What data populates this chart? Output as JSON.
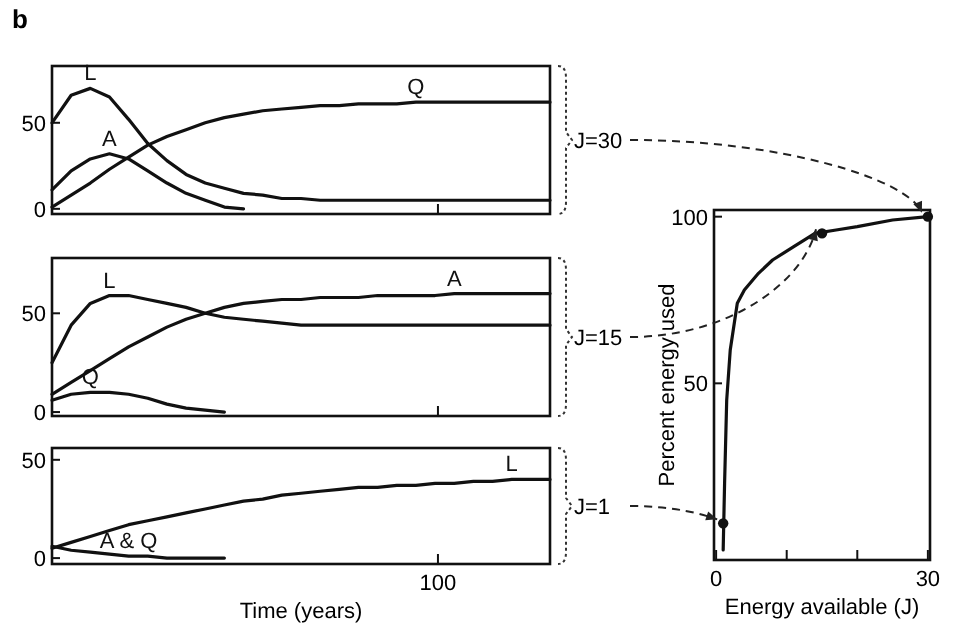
{
  "chart_data": [
    {
      "type": "line",
      "title": "b",
      "categories": [
        null,
        null,
        null,
        null,
        null,
        null,
        null,
        null,
        null,
        null,
        null,
        null,
        null,
        null,
        null,
        null,
        null,
        null,
        null,
        null,
        null,
        null,
        null,
        null,
        null,
        null,
        null
      ],
      "ylim": [
        -3,
        83
      ],
      "yticks": [
        0,
        50
      ],
      "marker": "none",
      "line_style": "solid",
      "series": [
        {
          "name": "L",
          "color": "#111111",
          "values": [
            50,
            66,
            70,
            65,
            52,
            38,
            28,
            20,
            15,
            12,
            9,
            8,
            6,
            6,
            5,
            5,
            5,
            5,
            5,
            5,
            5,
            5,
            5,
            5,
            5,
            5,
            5
          ]
        },
        {
          "name": "A",
          "color": "#111111",
          "values": [
            11,
            22,
            29,
            32,
            29,
            22,
            15,
            9,
            5,
            1,
            0,
            null,
            null,
            null,
            null,
            null,
            null,
            null,
            null,
            null,
            null,
            null,
            null,
            null,
            null,
            null,
            null
          ]
        },
        {
          "name": "Q",
          "color": "#111111",
          "values": [
            1,
            8,
            15,
            23,
            30,
            37,
            42,
            46,
            50,
            53,
            55,
            57,
            58,
            59,
            60,
            60,
            61,
            61,
            61,
            62,
            62,
            62,
            62,
            62,
            62,
            62,
            62
          ]
        }
      ]
    },
    {
      "type": "line",
      "categories": [
        null,
        null,
        null,
        null,
        null,
        null,
        null,
        null,
        null,
        null,
        null,
        null,
        null,
        null,
        null,
        null,
        null,
        null,
        null,
        null,
        null,
        null,
        null,
        null,
        null,
        null,
        null
      ],
      "ylim": [
        -2,
        78
      ],
      "yticks": [
        0,
        50
      ],
      "marker": "none",
      "line_style": "solid",
      "series": [
        {
          "name": "L",
          "color": "#111111",
          "values": [
            25,
            44,
            55,
            59,
            59,
            57,
            55,
            53,
            50,
            48,
            47,
            46,
            45,
            44,
            44,
            44,
            44,
            44,
            44,
            44,
            44,
            44,
            44,
            44,
            44,
            44,
            44
          ]
        },
        {
          "name": "A",
          "color": "#111111",
          "values": [
            9,
            15,
            21,
            27,
            33,
            38,
            43,
            47,
            50,
            53,
            55,
            56,
            57,
            57,
            58,
            58,
            58,
            59,
            59,
            59,
            59,
            60,
            60,
            60,
            60,
            60,
            60
          ]
        },
        {
          "name": "Q",
          "color": "#111111",
          "values": [
            6,
            9,
            10,
            10,
            9,
            7,
            4,
            2,
            1,
            0,
            null,
            null,
            null,
            null,
            null,
            null,
            null,
            null,
            null,
            null,
            null,
            null,
            null,
            null,
            null,
            null,
            null
          ]
        }
      ]
    },
    {
      "type": "line",
      "xlabel": "Time (years)",
      "annotations": [
        "100"
      ],
      "categories": [
        null,
        null,
        null,
        null,
        null,
        null,
        null,
        null,
        null,
        null,
        null,
        null,
        null,
        null,
        null,
        null,
        null,
        null,
        null,
        null,
        null,
        null,
        null,
        null,
        null,
        null,
        null
      ],
      "ylim": [
        -3,
        56
      ],
      "yticks": [
        0,
        50
      ],
      "marker": "none",
      "line_style": "solid",
      "series": [
        {
          "name": "L",
          "color": "#111111",
          "values": [
            5,
            8,
            11,
            14,
            17,
            19,
            21,
            23,
            25,
            27,
            29,
            30,
            32,
            33,
            34,
            35,
            36,
            36,
            37,
            37,
            38,
            38,
            39,
            39,
            40,
            40,
            40
          ]
        },
        {
          "name": "A & Q",
          "color": "#111111",
          "values": [
            6,
            4,
            3,
            2,
            1,
            1,
            0,
            0,
            0,
            0,
            null,
            null,
            null,
            null,
            null,
            null,
            null,
            null,
            null,
            null,
            null,
            null,
            null,
            null,
            null,
            null,
            null
          ]
        }
      ]
    },
    {
      "type": "line",
      "xlabel": "Energy available (J)",
      "ylabel": "Percent energy used",
      "xlim": [
        -0.3,
        30.3
      ],
      "xticks": [
        0,
        {
          "value": 10,
          "label": null
        },
        {
          "value": 20,
          "label": null
        },
        30
      ],
      "ylim": [
        -3,
        102
      ],
      "yticks": [
        50,
        100
      ],
      "marker": "none",
      "line_style": "solid",
      "annotations": [
        {
          "text": "J=30",
          "x": 30,
          "y": 100
        },
        {
          "text": "J=15",
          "x": 15,
          "y": 95
        },
        {
          "text": "J=1",
          "x": 1,
          "y": 8
        }
      ],
      "series": [
        {
          "color": "#111111",
          "x": [
            1,
            1.2,
            1.5,
            2,
            3,
            4,
            6,
            8,
            11,
            14,
            17,
            20,
            25,
            30
          ],
          "values": [
            0,
            20,
            45,
            60,
            74,
            78,
            83,
            87,
            91,
            95,
            96,
            97,
            99,
            100
          ]
        },
        {
          "type": "scatter",
          "marker": "circle",
          "color": "#111111",
          "x": [
            1,
            15,
            30
          ],
          "values": [
            8,
            95,
            100
          ]
        }
      ]
    }
  ]
}
